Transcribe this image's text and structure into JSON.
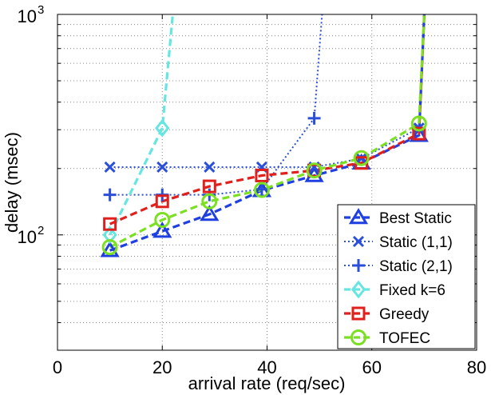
{
  "chart_data": {
    "type": "line",
    "title": "",
    "xlabel": "arrival rate (req/sec)",
    "ylabel": "delay (msec)",
    "xlim": [
      0,
      80
    ],
    "ylim": [
      30,
      1000
    ],
    "yscale": "log",
    "grid": true,
    "legend_position": "bottom-right",
    "x_ticks": [
      {
        "value": 0,
        "label": "0"
      },
      {
        "value": 20,
        "label": "20"
      },
      {
        "value": 40,
        "label": "40"
      },
      {
        "value": 60,
        "label": "60"
      },
      {
        "value": 80,
        "label": "80"
      }
    ],
    "y_ticks": [
      {
        "value": 100,
        "base": "10",
        "exp": "2"
      },
      {
        "value": 1000,
        "base": "10",
        "exp": "3"
      }
    ],
    "series": [
      {
        "name": "Best Static",
        "color": "#1f3fe0",
        "marker": "triangle",
        "line_style": "dashed",
        "points": [
          [
            10,
            85
          ],
          [
            20,
            104
          ],
          [
            29,
            124
          ],
          [
            39,
            159
          ],
          [
            49,
            186
          ],
          [
            58,
            212
          ],
          [
            69,
            283
          ],
          [
            70,
            1000
          ]
        ]
      },
      {
        "name": "Static (1,1)",
        "color": "#2b4fd8",
        "marker": "x",
        "line_style": "dotted",
        "points": [
          [
            10,
            203
          ],
          [
            20,
            203
          ],
          [
            29,
            203
          ],
          [
            39,
            203
          ],
          [
            49,
            203
          ],
          [
            58,
            222
          ],
          [
            69,
            305
          ],
          [
            70,
            1000
          ]
        ]
      },
      {
        "name": "Static (2,1)",
        "color": "#2b4fd8",
        "marker": "plus",
        "line_style": "dotted",
        "points": [
          [
            10,
            152
          ],
          [
            20,
            152
          ],
          [
            29,
            152
          ],
          [
            39,
            161
          ],
          [
            49,
            338
          ],
          [
            50.5,
            1000
          ]
        ]
      },
      {
        "name": "Fixed k=6",
        "color": "#66e6e0",
        "marker": "diamond",
        "line_style": "dashed",
        "points": [
          [
            10,
            100
          ],
          [
            20,
            305
          ],
          [
            22,
            1000
          ]
        ]
      },
      {
        "name": "Greedy",
        "color": "#e0201c",
        "marker": "square",
        "line_style": "dashed",
        "points": [
          [
            10,
            112
          ],
          [
            20,
            142
          ],
          [
            29,
            166
          ],
          [
            39,
            186
          ],
          [
            49,
            196
          ],
          [
            58,
            212
          ],
          [
            69,
            288
          ],
          [
            70,
            1000
          ]
        ]
      },
      {
        "name": "TOFEC",
        "color": "#7be022",
        "marker": "circle",
        "line_style": "dashed",
        "points": [
          [
            10,
            88
          ],
          [
            20,
            117
          ],
          [
            29,
            142
          ],
          [
            39,
            160
          ],
          [
            49,
            196
          ],
          [
            58,
            223
          ],
          [
            69,
            320
          ],
          [
            70,
            1000
          ]
        ]
      }
    ]
  }
}
